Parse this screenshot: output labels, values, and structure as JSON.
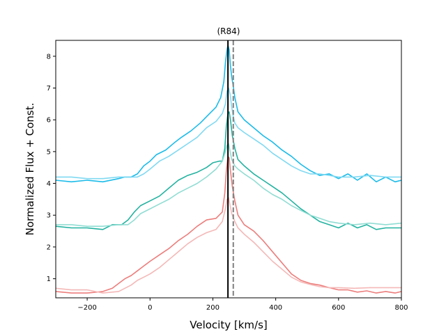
{
  "chart_data": {
    "type": "line",
    "title": "(R84)",
    "xlabel": "Velocity [km/s]",
    "ylabel": "Normalized Flux + Const.",
    "xlim": [
      -300,
      800
    ],
    "ylim": [
      0.4,
      8.5
    ],
    "xticks": [
      -200,
      0,
      200,
      400,
      600,
      800
    ],
    "yticks": [
      1,
      2,
      3,
      4,
      5,
      6,
      7,
      8
    ],
    "grid": false,
    "vlines": [
      {
        "name": "systemic-velocity",
        "x": 248,
        "color": "#000000",
        "style": "solid"
      },
      {
        "name": "reference-velocity",
        "x": 265,
        "color": "#808080",
        "style": "dashed"
      }
    ],
    "series": [
      {
        "name": "top-dark",
        "color": "#1bbbe9",
        "x": [
          -300,
          -250,
          -200,
          -150,
          -100,
          -80,
          -60,
          -40,
          -20,
          0,
          20,
          50,
          80,
          100,
          130,
          160,
          190,
          210,
          225,
          235,
          240,
          245,
          248,
          252,
          256,
          260,
          265,
          270,
          280,
          300,
          330,
          360,
          390,
          420,
          450,
          480,
          510,
          540,
          570,
          600,
          630,
          660,
          690,
          720,
          750,
          780,
          800
        ],
        "y": [
          4.1,
          4.05,
          4.1,
          4.05,
          4.15,
          4.2,
          4.2,
          4.3,
          4.55,
          4.7,
          4.9,
          5.05,
          5.3,
          5.45,
          5.65,
          5.9,
          6.2,
          6.4,
          6.7,
          7.2,
          7.8,
          8.2,
          8.35,
          8.2,
          7.7,
          7.35,
          7.05,
          6.7,
          6.25,
          6.0,
          5.75,
          5.5,
          5.3,
          5.05,
          4.85,
          4.6,
          4.4,
          4.25,
          4.3,
          4.15,
          4.3,
          4.1,
          4.3,
          4.05,
          4.2,
          4.05,
          4.1
        ]
      },
      {
        "name": "top-light",
        "color": "#80d9f2",
        "x": [
          -300,
          -250,
          -200,
          -150,
          -100,
          -70,
          -40,
          -20,
          0,
          30,
          60,
          90,
          120,
          150,
          180,
          210,
          230,
          240,
          245,
          250,
          255,
          260,
          265,
          270,
          280,
          300,
          330,
          360,
          390,
          420,
          450,
          480,
          510,
          540,
          570,
          600,
          650,
          700,
          750,
          800
        ],
        "y": [
          4.2,
          4.2,
          4.15,
          4.15,
          4.2,
          4.2,
          4.2,
          4.3,
          4.45,
          4.7,
          4.85,
          5.05,
          5.25,
          5.45,
          5.75,
          5.95,
          6.2,
          6.5,
          6.9,
          7.0,
          6.8,
          6.4,
          6.1,
          5.9,
          5.75,
          5.6,
          5.4,
          5.2,
          4.95,
          4.75,
          4.55,
          4.4,
          4.3,
          4.3,
          4.25,
          4.2,
          4.2,
          4.25,
          4.2,
          4.2
        ]
      },
      {
        "name": "mid-dark",
        "color": "#22b2a0",
        "x": [
          -300,
          -250,
          -200,
          -150,
          -120,
          -90,
          -70,
          -50,
          -30,
          0,
          30,
          60,
          90,
          120,
          150,
          180,
          200,
          220,
          230,
          238,
          243,
          248,
          252,
          256,
          262,
          270,
          280,
          300,
          330,
          360,
          390,
          420,
          450,
          480,
          510,
          540,
          570,
          600,
          630,
          660,
          690,
          720,
          750,
          780,
          800
        ],
        "y": [
          2.65,
          2.6,
          2.6,
          2.55,
          2.7,
          2.7,
          2.85,
          3.1,
          3.3,
          3.45,
          3.6,
          3.85,
          4.1,
          4.25,
          4.35,
          4.5,
          4.65,
          4.7,
          4.7,
          5.1,
          5.8,
          6.2,
          6.25,
          6.0,
          5.5,
          5.1,
          4.75,
          4.55,
          4.3,
          4.1,
          3.9,
          3.7,
          3.45,
          3.2,
          3.0,
          2.8,
          2.7,
          2.6,
          2.75,
          2.6,
          2.7,
          2.55,
          2.6,
          2.6,
          2.6
        ]
      },
      {
        "name": "mid-light",
        "color": "#90ddd3",
        "x": [
          -300,
          -250,
          -200,
          -150,
          -100,
          -70,
          -50,
          -30,
          0,
          30,
          60,
          90,
          120,
          150,
          180,
          210,
          230,
          240,
          245,
          250,
          255,
          260,
          270,
          280,
          300,
          330,
          360,
          390,
          420,
          450,
          480,
          510,
          540,
          570,
          600,
          650,
          700,
          750,
          800
        ],
        "y": [
          2.7,
          2.7,
          2.65,
          2.65,
          2.7,
          2.7,
          2.85,
          3.05,
          3.2,
          3.35,
          3.5,
          3.7,
          3.85,
          4.0,
          4.2,
          4.45,
          4.7,
          5.0,
          5.2,
          5.25,
          5.0,
          4.75,
          4.55,
          4.45,
          4.3,
          4.1,
          3.85,
          3.65,
          3.5,
          3.3,
          3.15,
          3.0,
          2.9,
          2.8,
          2.75,
          2.7,
          2.75,
          2.7,
          2.75
        ]
      },
      {
        "name": "bottom-dark",
        "color": "#ec7e7c",
        "x": [
          -300,
          -250,
          -200,
          -150,
          -120,
          -100,
          -80,
          -60,
          -40,
          -20,
          0,
          30,
          60,
          90,
          120,
          150,
          180,
          210,
          230,
          238,
          243,
          248,
          252,
          256,
          262,
          270,
          280,
          300,
          330,
          360,
          390,
          420,
          450,
          480,
          510,
          540,
          570,
          600,
          630,
          660,
          690,
          720,
          750,
          780,
          800
        ],
        "y": [
          0.6,
          0.55,
          0.55,
          0.6,
          0.7,
          0.85,
          1.0,
          1.1,
          1.25,
          1.4,
          1.55,
          1.75,
          1.95,
          2.2,
          2.4,
          2.65,
          2.85,
          2.9,
          3.1,
          3.7,
          4.4,
          4.85,
          4.8,
          4.4,
          3.9,
          3.45,
          3.0,
          2.7,
          2.5,
          2.2,
          1.85,
          1.5,
          1.15,
          0.95,
          0.85,
          0.8,
          0.72,
          0.65,
          0.65,
          0.58,
          0.62,
          0.55,
          0.6,
          0.55,
          0.6
        ]
      },
      {
        "name": "bottom-light",
        "color": "#f4b8b7",
        "x": [
          -300,
          -250,
          -200,
          -150,
          -100,
          -80,
          -60,
          -40,
          -20,
          0,
          30,
          60,
          90,
          120,
          150,
          180,
          210,
          230,
          240,
          245,
          250,
          255,
          260,
          270,
          280,
          300,
          330,
          360,
          390,
          420,
          450,
          480,
          510,
          540,
          570,
          600,
          650,
          700,
          750,
          800
        ],
        "y": [
          0.7,
          0.65,
          0.65,
          0.55,
          0.6,
          0.7,
          0.8,
          0.95,
          1.05,
          1.15,
          1.35,
          1.6,
          1.85,
          2.1,
          2.3,
          2.45,
          2.55,
          2.8,
          3.2,
          3.5,
          3.55,
          3.3,
          3.05,
          2.8,
          2.6,
          2.4,
          2.15,
          1.85,
          1.55,
          1.3,
          1.05,
          0.9,
          0.82,
          0.75,
          0.72,
          0.72,
          0.7,
          0.72,
          0.72,
          0.72
        ]
      }
    ]
  }
}
